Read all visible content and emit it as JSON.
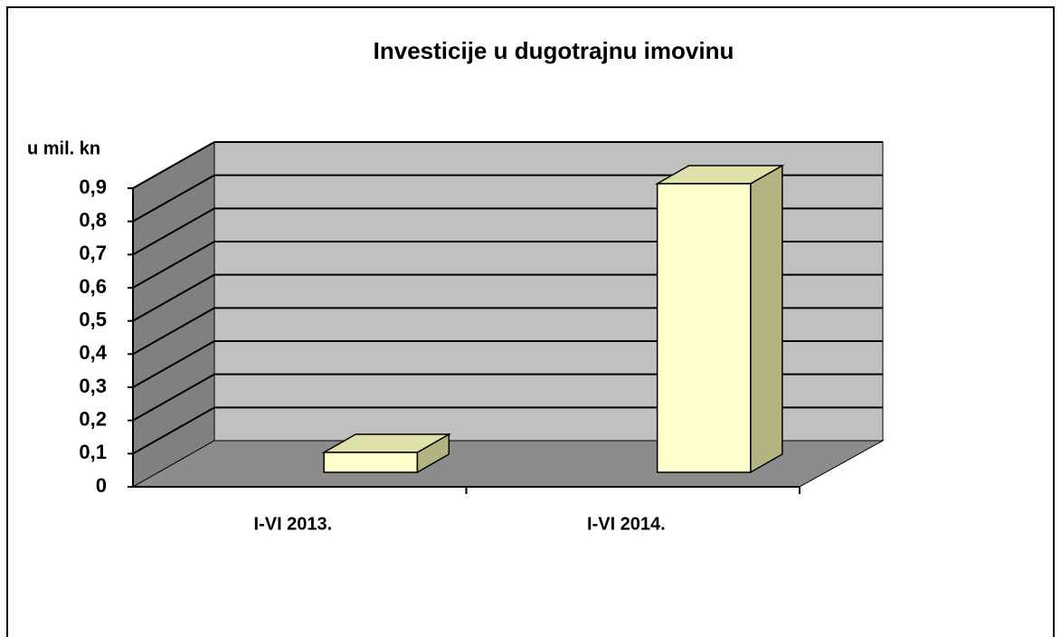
{
  "chart_data": {
    "type": "bar3d",
    "title": "Investicije u dugotrajnu imovinu",
    "y_label": "u mil. kn",
    "categories": [
      "I-VI 2013.",
      "I-VI 2014."
    ],
    "values": [
      0.06,
      0.87
    ],
    "color": "#ffffcc",
    "ylim": [
      0,
      0.9
    ],
    "yticks": [
      0,
      {
        "value": 0.1,
        "label": "0,1"
      },
      {
        "value": 0.2,
        "label": "0,2"
      },
      {
        "value": 0.3,
        "label": "0,3"
      },
      {
        "value": 0.4,
        "label": "0,4"
      },
      {
        "value": 0.5,
        "label": "0,5"
      },
      {
        "value": 0.6,
        "label": "0,6"
      },
      {
        "value": 0.7,
        "label": "0,7"
      },
      {
        "value": 0.8,
        "label": "0,8"
      },
      {
        "value": 0.9,
        "label": "0,9"
      }
    ],
    "grid": true
  }
}
